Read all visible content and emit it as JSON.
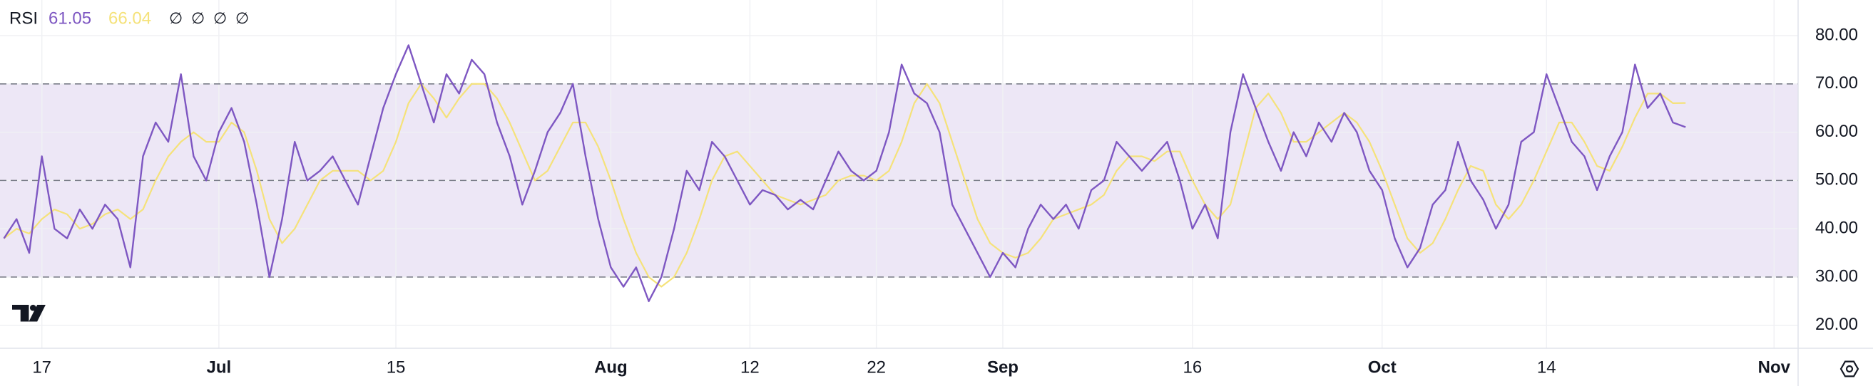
{
  "chart_data": {
    "type": "line",
    "title": "RSI",
    "header_values": [
      "61.05",
      "66.04"
    ],
    "header_icons": [
      "∅",
      "∅",
      "∅",
      "∅"
    ],
    "x": [
      13,
      14,
      15,
      16,
      17,
      18,
      19,
      20,
      21,
      22,
      23,
      24,
      25,
      26,
      27,
      28,
      29,
      30,
      31,
      32,
      33,
      34,
      35,
      36,
      37,
      38,
      39,
      40,
      41,
      42,
      43,
      44,
      45,
      46,
      47,
      48,
      49,
      50,
      51,
      52,
      53,
      54,
      55,
      56,
      57,
      58,
      59,
      60,
      61,
      62,
      63,
      64,
      65,
      66,
      67,
      68,
      69,
      70,
      71,
      72,
      73,
      74,
      75,
      76,
      77,
      78,
      79,
      80,
      81,
      82,
      83,
      84,
      85,
      86,
      87,
      88,
      89,
      90,
      91,
      92,
      93,
      94,
      95,
      96,
      97,
      98,
      99,
      100,
      101,
      102,
      103,
      104,
      105,
      106,
      107,
      108,
      109,
      110,
      111,
      112,
      113,
      114,
      115,
      116,
      117,
      118,
      119,
      120,
      121,
      122,
      123,
      124,
      125,
      126,
      127,
      128,
      129,
      130,
      131,
      132,
      133,
      134,
      135,
      136,
      137,
      138,
      139,
      140,
      141,
      142,
      143,
      144,
      145,
      146
    ],
    "series": [
      {
        "color": "#7e57c2",
        "values": [
          38,
          42,
          35,
          55,
          40,
          38,
          44,
          40,
          45,
          42,
          32,
          55,
          62,
          58,
          72,
          55,
          50,
          60,
          65,
          58,
          45,
          30,
          42,
          58,
          50,
          52,
          55,
          50,
          45,
          55,
          65,
          72,
          78,
          70,
          62,
          72,
          68,
          75,
          72,
          62,
          55,
          45,
          52,
          60,
          64,
          70,
          55,
          42,
          32,
          28,
          32,
          25,
          30,
          40,
          52,
          48,
          58,
          55,
          50,
          45,
          48,
          47,
          44,
          46,
          44,
          50,
          56,
          52,
          50,
          52,
          60,
          74,
          68,
          66,
          60,
          45,
          40,
          35,
          30,
          35,
          32,
          40,
          45,
          42,
          45,
          40,
          48,
          50,
          58,
          55,
          52,
          55,
          58,
          50,
          40,
          45,
          38,
          60,
          72,
          65,
          58,
          52,
          60,
          55,
          62,
          58,
          64,
          60,
          52,
          48,
          38,
          32,
          36,
          45,
          48,
          58,
          50,
          46,
          40,
          45,
          58,
          60,
          72,
          65,
          58,
          55,
          48,
          55,
          60,
          74,
          65,
          68,
          62,
          61.05
        ]
      },
      {
        "color": "#f5e27a",
        "values": [
          38,
          40,
          39,
          42,
          44,
          43,
          40,
          41,
          43,
          44,
          42,
          44,
          50,
          55,
          58,
          60,
          58,
          58,
          62,
          60,
          52,
          42,
          37,
          40,
          45,
          50,
          52,
          52,
          52,
          50,
          52,
          58,
          66,
          70,
          67,
          63,
          67,
          70,
          70,
          67,
          62,
          56,
          50,
          52,
          57,
          62,
          62,
          57,
          50,
          42,
          35,
          30,
          28,
          30,
          35,
          42,
          50,
          55,
          56,
          53,
          50,
          47,
          46,
          45,
          46,
          47,
          50,
          51,
          51,
          50,
          52,
          58,
          66,
          70,
          66,
          58,
          50,
          42,
          37,
          35,
          34,
          35,
          38,
          42,
          43,
          44,
          45,
          47,
          52,
          55,
          55,
          54,
          56,
          56,
          50,
          45,
          42,
          45,
          55,
          65,
          68,
          64,
          58,
          58,
          60,
          62,
          64,
          62,
          58,
          52,
          45,
          38,
          35,
          37,
          42,
          48,
          53,
          52,
          45,
          42,
          45,
          50,
          56,
          62,
          62,
          58,
          53,
          52,
          57,
          63,
          68,
          68,
          66,
          66.04
        ]
      }
    ],
    "xlim": [
      12.69,
      154.9
    ],
    "xticks": [
      {
        "value": 16,
        "label": "17"
      },
      {
        "value": 30,
        "label": "Jul"
      },
      {
        "value": 44,
        "label": "15"
      },
      {
        "value": 61,
        "label": "Aug"
      },
      {
        "value": 72,
        "label": "12"
      },
      {
        "value": 82,
        "label": "22"
      },
      {
        "value": 92,
        "label": "Sep"
      },
      {
        "value": 107,
        "label": "16"
      },
      {
        "value": 122,
        "label": "Oct"
      },
      {
        "value": 135,
        "label": "14"
      },
      {
        "value": 153,
        "label": "Nov"
      }
    ],
    "ylim": [
      15.25,
      87.37
    ],
    "yticks": [
      {
        "value": 20,
        "label": "20.00"
      },
      {
        "value": 30,
        "label": "30.00"
      },
      {
        "value": 40,
        "label": "40.00"
      },
      {
        "value": 50,
        "label": "50.00"
      },
      {
        "value": 60,
        "label": "60.00"
      },
      {
        "value": 70,
        "label": "70.00"
      },
      {
        "value": 80,
        "label": "80.00"
      }
    ],
    "levels": [
      30,
      50,
      70
    ],
    "band_color": "#ede7f6",
    "grid": true
  }
}
